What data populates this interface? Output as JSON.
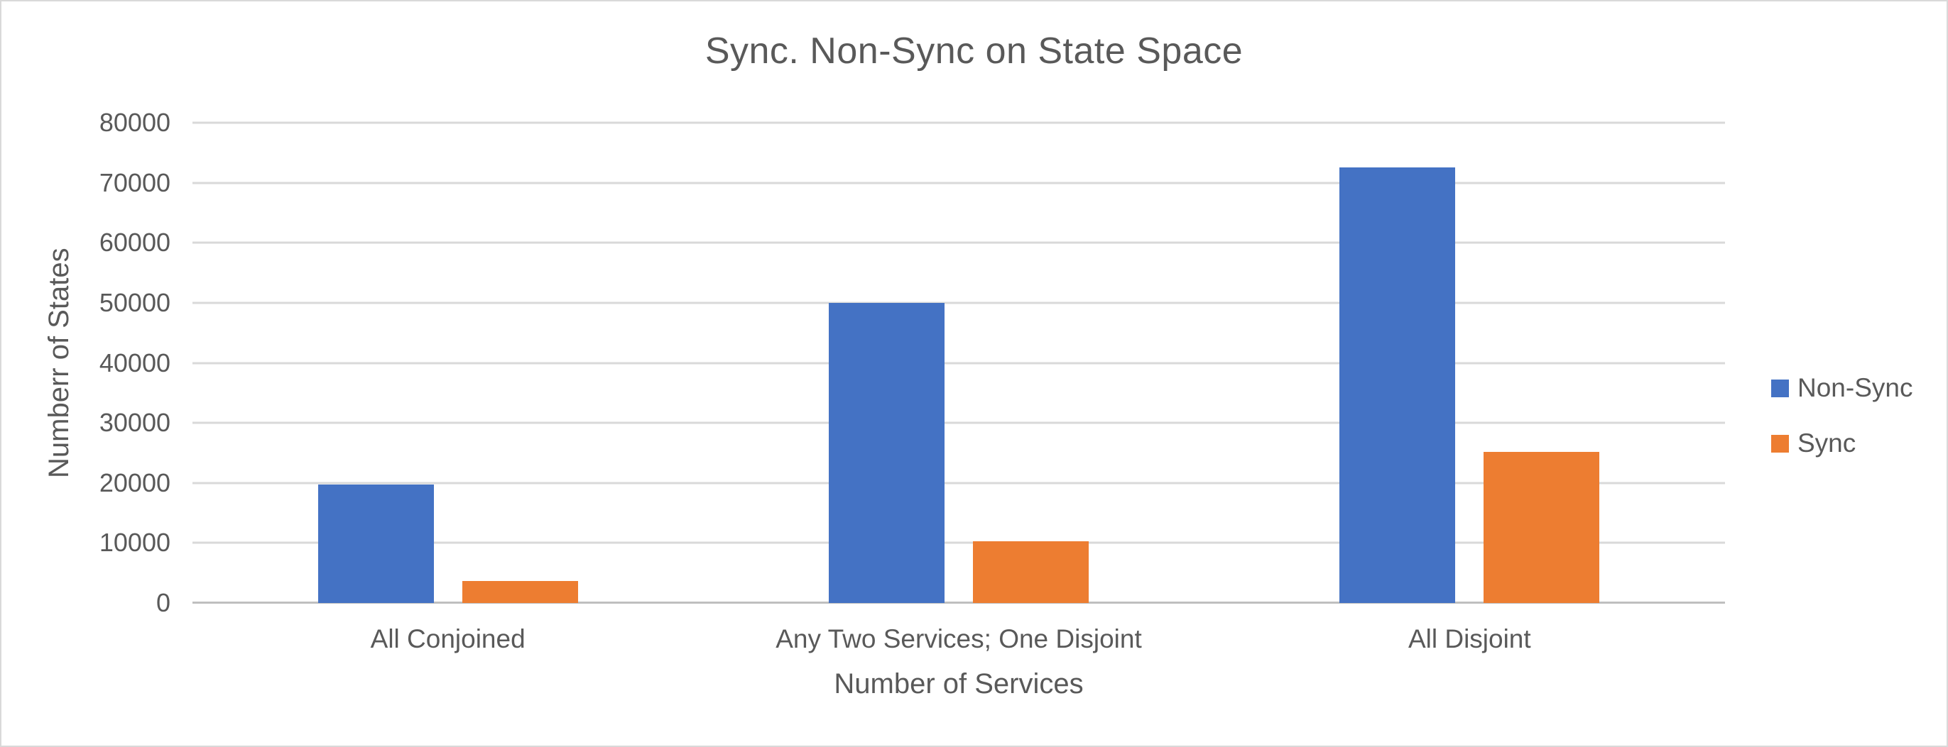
{
  "chart_data": {
    "type": "bar",
    "title": "Sync. Non-Sync on State Space",
    "xlabel": "Number of Services",
    "ylabel": "Numberr of States",
    "categories": [
      "All Conjoined",
      "Any Two Services; One Disjoint",
      "All Disjoint"
    ],
    "series": [
      {
        "name": "Non-Sync",
        "color": "#4472C4",
        "values": [
          19700,
          50000,
          72500
        ]
      },
      {
        "name": "Sync",
        "color": "#ED7D31",
        "values": [
          3700,
          10300,
          25200
        ]
      }
    ],
    "ylim": [
      0,
      80000
    ],
    "ytick_step": 10000,
    "ytick_labels": [
      "0",
      "10000",
      "20000",
      "30000",
      "40000",
      "50000",
      "60000",
      "70000",
      "80000"
    ],
    "grid": true,
    "legend_position": "right"
  },
  "colors": {
    "text": "#595959",
    "gridline": "#D9D9D9",
    "axis_line": "#BFBFBF",
    "frame_border": "#D9D9D9",
    "background": "#FFFFFF"
  }
}
